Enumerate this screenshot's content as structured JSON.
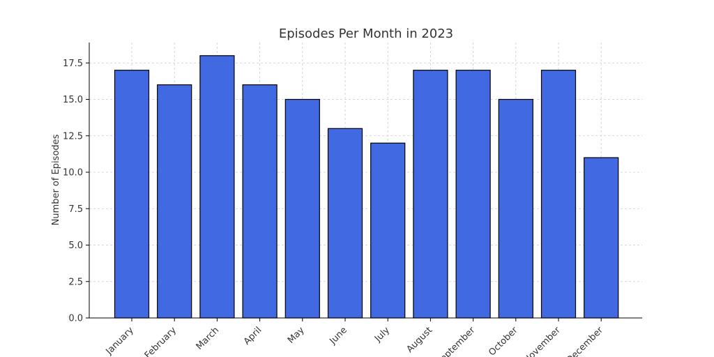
{
  "chart_data": {
    "type": "bar",
    "title": "Episodes Per Month in 2023",
    "xlabel": "",
    "ylabel": "Number of Episodes",
    "categories": [
      "January",
      "February",
      "March",
      "April",
      "May",
      "June",
      "July",
      "August",
      "September",
      "October",
      "November",
      "December"
    ],
    "values": [
      17,
      16,
      18,
      16,
      15,
      13,
      12,
      17,
      17,
      15,
      17,
      11
    ],
    "ylim": [
      0,
      18.9
    ],
    "yticks": [
      "0.0",
      "2.5",
      "5.0",
      "7.5",
      "10.0",
      "12.5",
      "15.0",
      "17.5"
    ],
    "grid": true,
    "colors": {
      "bar": "#4169e1",
      "edge": "#000000",
      "grid": "#cccccc"
    }
  }
}
